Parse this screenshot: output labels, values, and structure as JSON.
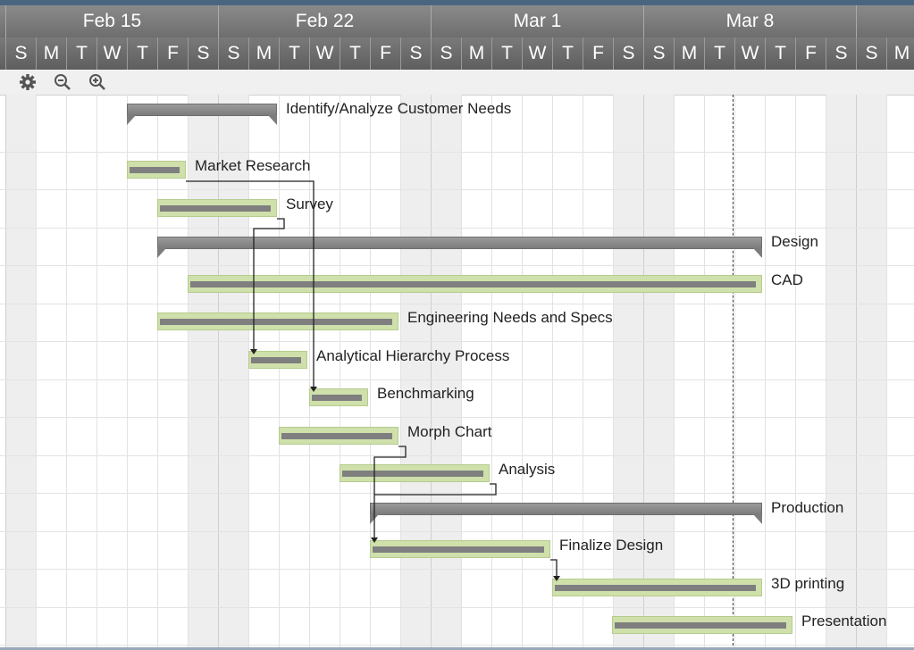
{
  "timeline": {
    "weeks": [
      "Feb 15",
      "Feb 22",
      "Mar 1",
      "Mar 8"
    ],
    "day_letters": [
      "S",
      "M",
      "T",
      "W",
      "T",
      "F",
      "S"
    ]
  },
  "toolbar": {
    "settings_icon": "gear-icon",
    "zoom_out_icon": "zoom-out-icon",
    "zoom_in_icon": "zoom-in-icon"
  },
  "tasks": [
    {
      "label": "Identify/Analyze Customer Needs",
      "kind": "summary"
    },
    {
      "label": "Market Research",
      "kind": "task"
    },
    {
      "label": "Survey",
      "kind": "task"
    },
    {
      "label": "Design",
      "kind": "summary"
    },
    {
      "label": "CAD",
      "kind": "task"
    },
    {
      "label": "Engineering Needs and Specs",
      "kind": "task"
    },
    {
      "label": "Analytical Hierarchy Process",
      "kind": "task"
    },
    {
      "label": "Benchmarking",
      "kind": "task"
    },
    {
      "label": "Morph Chart",
      "kind": "task"
    },
    {
      "label": "Analysis",
      "kind": "task"
    },
    {
      "label": "Production",
      "kind": "summary"
    },
    {
      "label": "Finalize Design",
      "kind": "task"
    },
    {
      "label": "3D printing",
      "kind": "task"
    },
    {
      "label": "Presentation",
      "kind": "task"
    }
  ],
  "colors": {
    "task_fill": "#cfe0ab",
    "task_progress": "#7f7f7f",
    "summary_fill": "#8a8a8a",
    "header_bg": "#6e6e6e"
  }
}
